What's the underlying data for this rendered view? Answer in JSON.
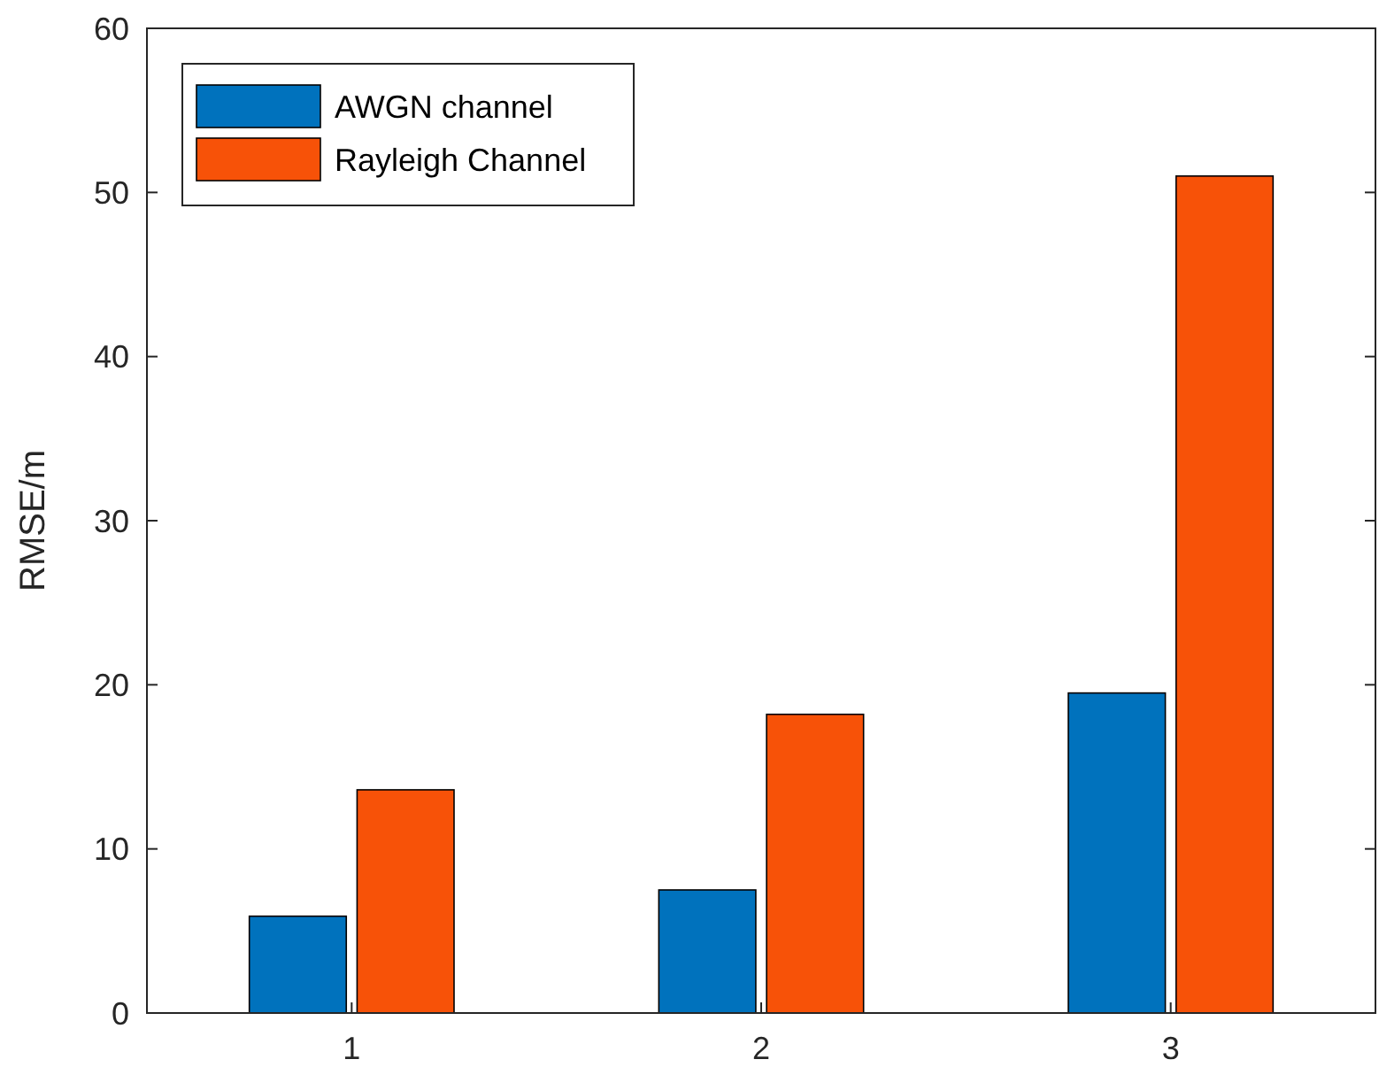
{
  "chart_data": {
    "type": "bar",
    "ylabel": "RMSE/m",
    "categories": [
      "1",
      "2",
      "3"
    ],
    "series": [
      {
        "name": "AWGN channel",
        "color": "#0072bd",
        "values": [
          5.9,
          7.5,
          19.5
        ]
      },
      {
        "name": "Rayleigh Channel",
        "color": "#f75208",
        "values": [
          13.6,
          18.2,
          51.0
        ]
      }
    ],
    "ylim": [
      0,
      60
    ],
    "yticks": [
      0,
      10,
      20,
      30,
      40,
      50,
      60
    ],
    "grid": false,
    "legend": "top left"
  }
}
